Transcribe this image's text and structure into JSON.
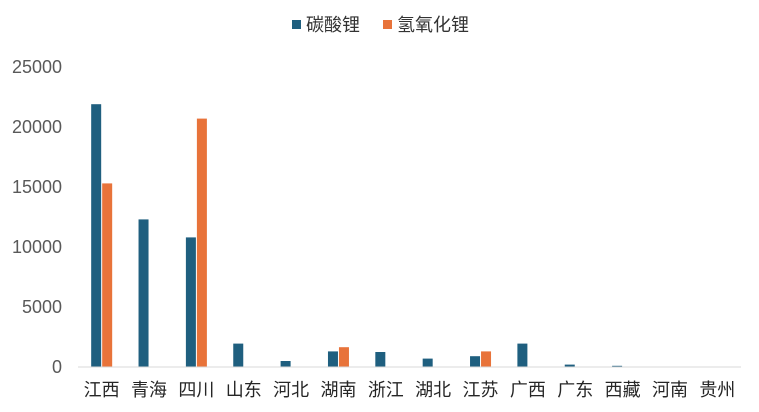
{
  "chart_data": {
    "type": "bar",
    "categories": [
      "江西",
      "青海",
      "四川",
      "山东",
      "河北",
      "湖南",
      "浙江",
      "湖北",
      "江苏",
      "广西",
      "广东",
      "西藏",
      "河南",
      "贵州"
    ],
    "series": [
      {
        "name": "碳酸锂",
        "color": "#1f5f7f",
        "values": [
          21900,
          12300,
          10800,
          1950,
          500,
          1300,
          1250,
          700,
          900,
          1950,
          200,
          100,
          0,
          0
        ]
      },
      {
        "name": "氢氧化锂",
        "color": "#e8733a",
        "values": [
          15300,
          0,
          20700,
          0,
          0,
          1650,
          0,
          0,
          1300,
          0,
          0,
          0,
          0,
          0
        ]
      }
    ],
    "ylim": [
      0,
      25000
    ],
    "yticks": [
      0,
      5000,
      10000,
      15000,
      20000,
      25000
    ],
    "legend_position": "top",
    "grid": false,
    "title": "",
    "xlabel": "",
    "ylabel": ""
  }
}
